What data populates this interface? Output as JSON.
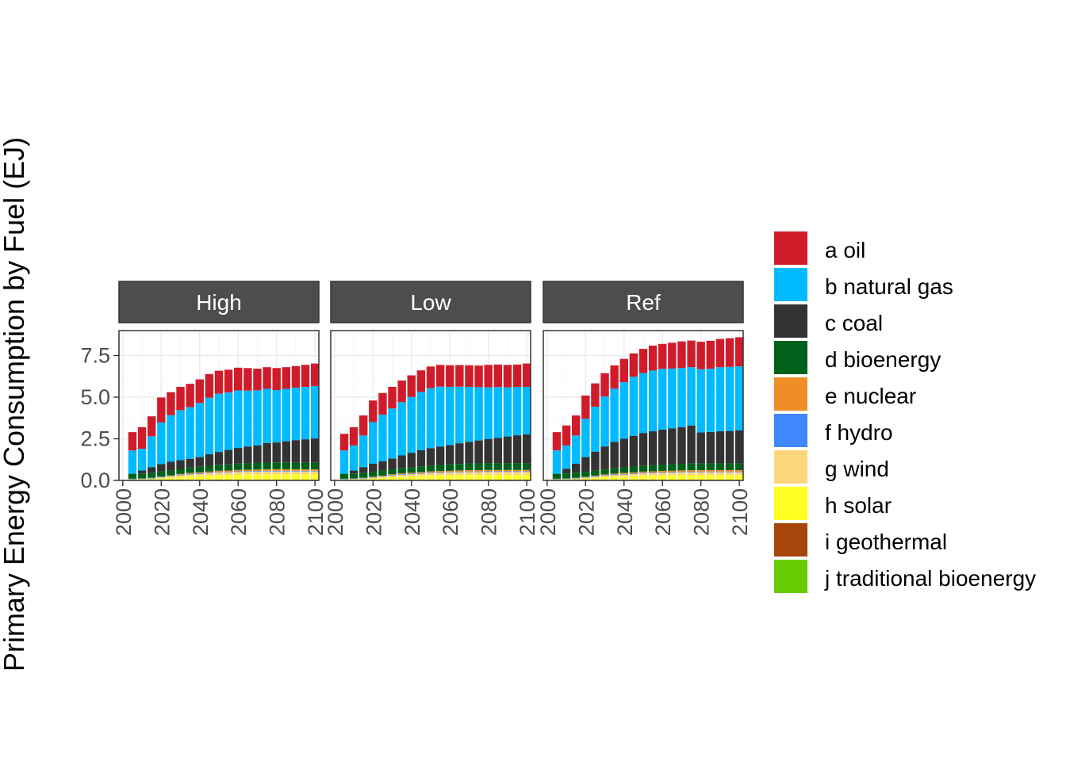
{
  "chart_data": {
    "type": "bar",
    "stacked": true,
    "facet_by": "scenario",
    "ylabel": "Primary Energy Consumption by Fuel (EJ)",
    "xlabel": "",
    "ylim": [
      0,
      9
    ],
    "yticks": [
      0.0,
      2.5,
      5.0,
      7.5
    ],
    "ytick_labels": [
      "0.0",
      "2.5",
      "5.0",
      "7.5"
    ],
    "xlim": [
      1998,
      2102
    ],
    "xticks": [
      2000,
      2020,
      2040,
      2060,
      2080,
      2100
    ],
    "xtick_labels": [
      "2000",
      "2020",
      "2040",
      "2060",
      "2080",
      "2100"
    ],
    "grid": true,
    "legend_position": "right",
    "x": [
      2005,
      2010,
      2015,
      2020,
      2025,
      2030,
      2035,
      2040,
      2045,
      2050,
      2055,
      2060,
      2065,
      2070,
      2075,
      2080,
      2085,
      2090,
      2095,
      2100
    ],
    "fuels": [
      {
        "key": "j",
        "name": "j traditional bioenergy",
        "color": "#66cc00"
      },
      {
        "key": "i",
        "name": "i geothermal",
        "color": "#a6460c"
      },
      {
        "key": "h",
        "name": "h solar",
        "color": "#ffff22"
      },
      {
        "key": "g",
        "name": "g wind",
        "color": "#fdd67b"
      },
      {
        "key": "f",
        "name": "f hydro",
        "color": "#3f86ff"
      },
      {
        "key": "e",
        "name": "e nuclear",
        "color": "#ef8e27"
      },
      {
        "key": "d",
        "name": "d bioenergy",
        "color": "#00611b"
      },
      {
        "key": "c",
        "name": "c coal",
        "color": "#333333"
      },
      {
        "key": "b",
        "name": "b natural gas",
        "color": "#00bbff"
      },
      {
        "key": "a",
        "name": "a oil",
        "color": "#d01c2a"
      }
    ],
    "legend": [
      {
        "label": "a oil",
        "color": "#d01c2a"
      },
      {
        "label": "b natural gas",
        "color": "#00bbff"
      },
      {
        "label": "c coal",
        "color": "#333333"
      },
      {
        "label": "d bioenergy",
        "color": "#00611b"
      },
      {
        "label": "e nuclear",
        "color": "#ef8e27"
      },
      {
        "label": "f hydro",
        "color": "#3f86ff"
      },
      {
        "label": "g wind",
        "color": "#fdd67b"
      },
      {
        "label": "h solar",
        "color": "#ffff22"
      },
      {
        "label": "i geothermal",
        "color": "#a6460c"
      },
      {
        "label": "j traditional bioenergy",
        "color": "#66cc00"
      }
    ],
    "panels": [
      {
        "name": "High",
        "values": {
          "j": [
            0.05,
            0.05,
            0.05,
            0.04,
            0.04,
            0.04,
            0.03,
            0.03,
            0.03,
            0.03,
            0.02,
            0.02,
            0.02,
            0.02,
            0.02,
            0.02,
            0.02,
            0.02,
            0.02,
            0.02
          ],
          "i": [
            0.01,
            0.01,
            0.01,
            0.01,
            0.01,
            0.01,
            0.01,
            0.01,
            0.01,
            0.02,
            0.02,
            0.02,
            0.02,
            0.02,
            0.02,
            0.02,
            0.02,
            0.02,
            0.02,
            0.02
          ],
          "h": [
            0.01,
            0.02,
            0.03,
            0.08,
            0.12,
            0.16,
            0.2,
            0.22,
            0.25,
            0.27,
            0.28,
            0.3,
            0.31,
            0.31,
            0.32,
            0.32,
            0.32,
            0.32,
            0.32,
            0.32
          ],
          "g": [
            0.01,
            0.02,
            0.03,
            0.05,
            0.07,
            0.1,
            0.12,
            0.13,
            0.14,
            0.15,
            0.16,
            0.17,
            0.17,
            0.18,
            0.18,
            0.18,
            0.18,
            0.18,
            0.18,
            0.18
          ],
          "f": [
            0.02,
            0.02,
            0.03,
            0.03,
            0.03,
            0.04,
            0.04,
            0.04,
            0.04,
            0.04,
            0.04,
            0.04,
            0.04,
            0.04,
            0.04,
            0.04,
            0.04,
            0.04,
            0.04,
            0.04
          ],
          "e": [
            0.0,
            0.0,
            0.01,
            0.02,
            0.03,
            0.04,
            0.05,
            0.06,
            0.06,
            0.07,
            0.07,
            0.08,
            0.08,
            0.08,
            0.09,
            0.09,
            0.09,
            0.09,
            0.09,
            0.09
          ],
          "d": [
            0.3,
            0.3,
            0.3,
            0.3,
            0.3,
            0.3,
            0.32,
            0.33,
            0.35,
            0.36,
            0.37,
            0.38,
            0.39,
            0.4,
            0.4,
            0.41,
            0.41,
            0.41,
            0.41,
            0.41
          ],
          "c": [
            0.0,
            0.18,
            0.34,
            0.45,
            0.52,
            0.53,
            0.53,
            0.58,
            0.69,
            0.77,
            0.87,
            0.94,
            1.01,
            1.06,
            1.18,
            1.2,
            1.27,
            1.34,
            1.39,
            1.44
          ],
          "b": [
            1.4,
            1.3,
            1.85,
            2.5,
            2.8,
            3.0,
            3.1,
            3.25,
            3.4,
            3.5,
            3.45,
            3.45,
            3.35,
            3.3,
            3.25,
            3.15,
            3.15,
            3.15,
            3.15,
            3.15
          ],
          "a": [
            1.1,
            1.3,
            1.2,
            1.5,
            1.38,
            1.4,
            1.4,
            1.42,
            1.42,
            1.38,
            1.37,
            1.37,
            1.36,
            1.3,
            1.3,
            1.32,
            1.3,
            1.3,
            1.32,
            1.35
          ]
        }
      },
      {
        "name": "Low",
        "values": {
          "j": [
            0.05,
            0.05,
            0.05,
            0.04,
            0.04,
            0.04,
            0.03,
            0.03,
            0.03,
            0.03,
            0.02,
            0.02,
            0.02,
            0.02,
            0.02,
            0.02,
            0.02,
            0.02,
            0.02,
            0.02
          ],
          "i": [
            0.01,
            0.01,
            0.01,
            0.01,
            0.01,
            0.01,
            0.01,
            0.01,
            0.01,
            0.02,
            0.02,
            0.02,
            0.02,
            0.02,
            0.02,
            0.02,
            0.02,
            0.02,
            0.02,
            0.02
          ],
          "h": [
            0.01,
            0.02,
            0.03,
            0.07,
            0.11,
            0.15,
            0.19,
            0.21,
            0.23,
            0.25,
            0.26,
            0.27,
            0.28,
            0.29,
            0.29,
            0.3,
            0.3,
            0.3,
            0.3,
            0.3
          ],
          "g": [
            0.01,
            0.02,
            0.03,
            0.05,
            0.07,
            0.09,
            0.11,
            0.12,
            0.13,
            0.14,
            0.15,
            0.16,
            0.16,
            0.17,
            0.17,
            0.17,
            0.17,
            0.17,
            0.17,
            0.17
          ],
          "f": [
            0.02,
            0.02,
            0.03,
            0.03,
            0.03,
            0.04,
            0.04,
            0.04,
            0.04,
            0.04,
            0.04,
            0.04,
            0.04,
            0.04,
            0.04,
            0.04,
            0.04,
            0.04,
            0.04,
            0.04
          ],
          "e": [
            0.0,
            0.0,
            0.01,
            0.02,
            0.03,
            0.04,
            0.05,
            0.05,
            0.06,
            0.06,
            0.07,
            0.07,
            0.08,
            0.08,
            0.08,
            0.08,
            0.08,
            0.08,
            0.08,
            0.08
          ],
          "d": [
            0.3,
            0.3,
            0.3,
            0.3,
            0.3,
            0.3,
            0.32,
            0.33,
            0.35,
            0.36,
            0.37,
            0.38,
            0.39,
            0.4,
            0.4,
            0.41,
            0.41,
            0.41,
            0.41,
            0.41
          ],
          "c": [
            0.0,
            0.18,
            0.34,
            0.48,
            0.56,
            0.65,
            0.75,
            0.87,
            0.96,
            1.04,
            1.11,
            1.16,
            1.24,
            1.3,
            1.38,
            1.45,
            1.52,
            1.6,
            1.67,
            1.73
          ],
          "b": [
            1.4,
            1.5,
            1.9,
            2.5,
            2.8,
            3.0,
            3.2,
            3.35,
            3.5,
            3.6,
            3.6,
            3.5,
            3.4,
            3.3,
            3.2,
            3.1,
            3.05,
            2.95,
            2.9,
            2.85
          ],
          "a": [
            1.0,
            1.1,
            1.2,
            1.3,
            1.3,
            1.3,
            1.3,
            1.3,
            1.3,
            1.3,
            1.3,
            1.3,
            1.3,
            1.3,
            1.3,
            1.35,
            1.35,
            1.35,
            1.35,
            1.4
          ]
        }
      },
      {
        "name": "Ref",
        "values": {
          "j": [
            0.05,
            0.05,
            0.05,
            0.04,
            0.04,
            0.04,
            0.03,
            0.03,
            0.03,
            0.03,
            0.02,
            0.02,
            0.02,
            0.02,
            0.02,
            0.02,
            0.02,
            0.02,
            0.02,
            0.02
          ],
          "i": [
            0.01,
            0.01,
            0.01,
            0.01,
            0.01,
            0.01,
            0.01,
            0.01,
            0.01,
            0.02,
            0.02,
            0.02,
            0.02,
            0.02,
            0.02,
            0.02,
            0.02,
            0.02,
            0.02,
            0.02
          ],
          "h": [
            0.01,
            0.02,
            0.03,
            0.07,
            0.1,
            0.14,
            0.17,
            0.19,
            0.21,
            0.23,
            0.24,
            0.25,
            0.26,
            0.27,
            0.27,
            0.28,
            0.28,
            0.28,
            0.28,
            0.28
          ],
          "g": [
            0.01,
            0.02,
            0.03,
            0.05,
            0.07,
            0.09,
            0.11,
            0.12,
            0.13,
            0.14,
            0.15,
            0.16,
            0.16,
            0.17,
            0.17,
            0.17,
            0.17,
            0.17,
            0.17,
            0.17
          ],
          "f": [
            0.02,
            0.02,
            0.03,
            0.03,
            0.03,
            0.04,
            0.04,
            0.04,
            0.04,
            0.04,
            0.04,
            0.04,
            0.04,
            0.04,
            0.04,
            0.04,
            0.04,
            0.04,
            0.04,
            0.04
          ],
          "e": [
            0.0,
            0.0,
            0.01,
            0.02,
            0.03,
            0.04,
            0.05,
            0.06,
            0.06,
            0.07,
            0.07,
            0.08,
            0.08,
            0.08,
            0.09,
            0.09,
            0.09,
            0.09,
            0.09,
            0.09
          ],
          "d": [
            0.3,
            0.3,
            0.3,
            0.3,
            0.3,
            0.3,
            0.32,
            0.33,
            0.35,
            0.36,
            0.37,
            0.38,
            0.39,
            0.4,
            0.4,
            0.41,
            0.41,
            0.41,
            0.41,
            0.41
          ],
          "c": [
            0.0,
            0.28,
            0.54,
            0.88,
            1.15,
            1.38,
            1.58,
            1.72,
            1.85,
            1.96,
            2.04,
            2.1,
            2.15,
            2.2,
            2.29,
            1.85,
            1.88,
            1.92,
            1.94,
            1.97
          ],
          "b": [
            1.4,
            1.4,
            1.7,
            2.3,
            2.7,
            3.0,
            3.2,
            3.4,
            3.55,
            3.6,
            3.65,
            3.65,
            3.6,
            3.55,
            3.5,
            3.8,
            3.8,
            3.85,
            3.85,
            3.85
          ],
          "a": [
            1.1,
            1.2,
            1.2,
            1.4,
            1.4,
            1.4,
            1.4,
            1.4,
            1.4,
            1.45,
            1.5,
            1.5,
            1.55,
            1.6,
            1.6,
            1.65,
            1.68,
            1.7,
            1.72,
            1.75
          ]
        }
      }
    ]
  }
}
